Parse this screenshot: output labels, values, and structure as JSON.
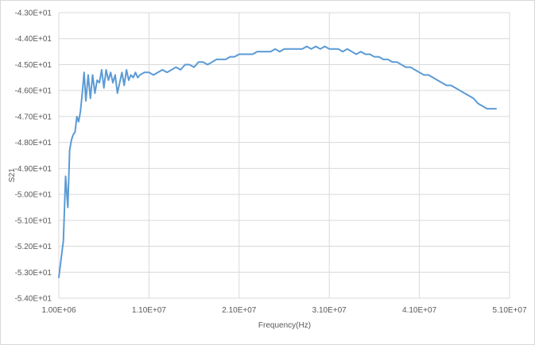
{
  "chart_data": {
    "type": "line",
    "title": "",
    "xlabel": "Frequency(Hz)",
    "ylabel": "S21",
    "xlim": [
      1000000,
      51000000
    ],
    "ylim": [
      -54,
      -43
    ],
    "x_ticks": [
      1000000,
      11000000,
      21000000,
      31000000,
      41000000,
      51000000
    ],
    "x_tick_labels": [
      "1.00E+06",
      "1.10E+07",
      "2.10E+07",
      "3.10E+07",
      "4.10E+07",
      "5.10E+07"
    ],
    "y_ticks": [
      -43,
      -44,
      -45,
      -46,
      -47,
      -48,
      -49,
      -50,
      -51,
      -52,
      -53,
      -54
    ],
    "y_tick_labels": [
      "-4.30E+01",
      "-4.40E+01",
      "-4.50E+01",
      "-4.60E+01",
      "-4.70E+01",
      "-4.80E+01",
      "-4.90E+01",
      "-5.00E+01",
      "-5.10E+01",
      "-5.20E+01",
      "-5.30E+01",
      "-5.40E+01"
    ],
    "grid": true,
    "line_color": "#5b9bd5",
    "series": [
      {
        "x": [
          1000000,
          1250000,
          1500000,
          1750000,
          2000000,
          2200000,
          2400000,
          2600000,
          2800000,
          3000000,
          3200000,
          3400000,
          3600000,
          3800000,
          4000000,
          4250000,
          4500000,
          4750000,
          5000000,
          5250000,
          5500000,
          5750000,
          6000000,
          6250000,
          6500000,
          6750000,
          7000000,
          7250000,
          7500000,
          7750000,
          8000000,
          8250000,
          8500000,
          8750000,
          9000000,
          9250000,
          9500000,
          9750000,
          10000000,
          10500000,
          11000000,
          11500000,
          12000000,
          12500000,
          13000000,
          13500000,
          14000000,
          14500000,
          15000000,
          15500000,
          16000000,
          16500000,
          17000000,
          17500000,
          18000000,
          18500000,
          19000000,
          19500000,
          20000000,
          20500000,
          21000000,
          21500000,
          22000000,
          22500000,
          23000000,
          23500000,
          24000000,
          24500000,
          25000000,
          25500000,
          26000000,
          26500000,
          27000000,
          27500000,
          28000000,
          28500000,
          29000000,
          29500000,
          30000000,
          30500000,
          31000000,
          31500000,
          32000000,
          32500000,
          33000000,
          33500000,
          34000000,
          34500000,
          35000000,
          35500000,
          36000000,
          36500000,
          37000000,
          37500000,
          38000000,
          38500000,
          39000000,
          39500000,
          40000000,
          40500000,
          41000000,
          41500000,
          42000000,
          42500000,
          43000000,
          43500000,
          44000000,
          44500000,
          45000000,
          45500000,
          46000000,
          46500000,
          47000000,
          47500000,
          48000000,
          48500000,
          49000000,
          49500000
        ],
        "y": [
          -53.2,
          -52.5,
          -51.8,
          -49.3,
          -50.5,
          -48.3,
          -47.9,
          -47.7,
          -47.6,
          -47.0,
          -47.2,
          -46.8,
          -46.1,
          -45.3,
          -46.4,
          -45.4,
          -46.3,
          -45.4,
          -46.1,
          -45.6,
          -45.7,
          -45.2,
          -45.9,
          -45.2,
          -45.6,
          -45.3,
          -45.7,
          -45.4,
          -46.1,
          -45.7,
          -45.3,
          -45.8,
          -45.2,
          -45.6,
          -45.4,
          -45.5,
          -45.3,
          -45.5,
          -45.4,
          -45.3,
          -45.3,
          -45.4,
          -45.3,
          -45.2,
          -45.3,
          -45.2,
          -45.1,
          -45.2,
          -45.0,
          -45.0,
          -45.1,
          -44.9,
          -44.9,
          -45.0,
          -44.9,
          -44.8,
          -44.8,
          -44.8,
          -44.7,
          -44.7,
          -44.6,
          -44.6,
          -44.6,
          -44.6,
          -44.5,
          -44.5,
          -44.5,
          -44.5,
          -44.4,
          -44.5,
          -44.4,
          -44.4,
          -44.4,
          -44.4,
          -44.4,
          -44.3,
          -44.4,
          -44.3,
          -44.4,
          -44.3,
          -44.4,
          -44.4,
          -44.4,
          -44.5,
          -44.4,
          -44.5,
          -44.6,
          -44.5,
          -44.6,
          -44.6,
          -44.7,
          -44.7,
          -44.8,
          -44.8,
          -44.9,
          -44.9,
          -45.0,
          -45.1,
          -45.1,
          -45.2,
          -45.3,
          -45.4,
          -45.4,
          -45.5,
          -45.6,
          -45.7,
          -45.8,
          -45.8,
          -45.9,
          -46.0,
          -46.1,
          -46.2,
          -46.3,
          -46.5,
          -46.6,
          -46.7,
          -46.7,
          -46.7
        ]
      }
    ]
  }
}
